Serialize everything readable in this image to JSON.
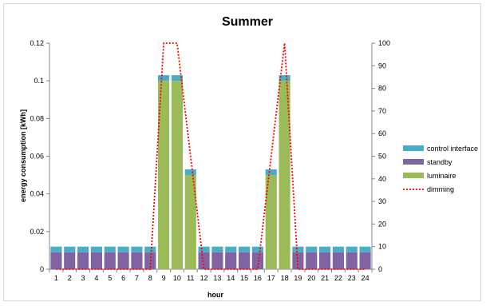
{
  "chart_data": {
    "type": "bar",
    "stacked": true,
    "title": "Summer",
    "xlabel": "hour",
    "ylabel": "energy consumption [kWh]",
    "ylim": [
      0,
      0.12
    ],
    "yticks": [
      "0",
      "0.02",
      "0.04",
      "0.06",
      "0.08",
      "0.1",
      "0.12"
    ],
    "y2lim": [
      0,
      100
    ],
    "y2ticks": [
      "0",
      "10",
      "20",
      "30",
      "40",
      "50",
      "60",
      "70",
      "80",
      "90",
      "100"
    ],
    "grid": false,
    "legend_position": "right",
    "categories": [
      "1",
      "2",
      "3",
      "4",
      "5",
      "6",
      "7",
      "8",
      "9",
      "10",
      "11",
      "12",
      "13",
      "14",
      "15",
      "16",
      "17",
      "18",
      "19",
      "20",
      "21",
      "22",
      "23",
      "24"
    ],
    "series": [
      {
        "name": "control interface",
        "kind": "bar",
        "color": "#4bacc6",
        "values": [
          0.003,
          0.003,
          0.003,
          0.003,
          0.003,
          0.003,
          0.003,
          0.003,
          0.003,
          0.003,
          0.003,
          0.003,
          0.003,
          0.003,
          0.003,
          0.003,
          0.003,
          0.003,
          0.003,
          0.003,
          0.003,
          0.003,
          0.003,
          0.003
        ]
      },
      {
        "name": "standby",
        "kind": "bar",
        "color": "#8064a2",
        "values": [
          0.009,
          0.009,
          0.009,
          0.009,
          0.009,
          0.009,
          0.009,
          0.009,
          0,
          0,
          0,
          0.009,
          0.009,
          0.009,
          0.009,
          0.009,
          0,
          0,
          0.009,
          0.009,
          0.009,
          0.009,
          0.009,
          0.009
        ]
      },
      {
        "name": "luminaire",
        "kind": "bar",
        "color": "#9bbb59",
        "values": [
          0,
          0,
          0,
          0,
          0,
          0,
          0,
          0,
          0.1,
          0.1,
          0.05,
          0,
          0,
          0,
          0,
          0,
          0.05,
          0.1,
          0,
          0,
          0,
          0,
          0,
          0
        ]
      },
      {
        "name": "dimming",
        "kind": "line",
        "axis": "secondary",
        "color": "#ff0000",
        "style": "dotted",
        "values": [
          0,
          0,
          0,
          0,
          0,
          0,
          0,
          0,
          100,
          100,
          50,
          0,
          0,
          0,
          0,
          0,
          50,
          100,
          0,
          0,
          0,
          0,
          0,
          0
        ]
      }
    ]
  }
}
